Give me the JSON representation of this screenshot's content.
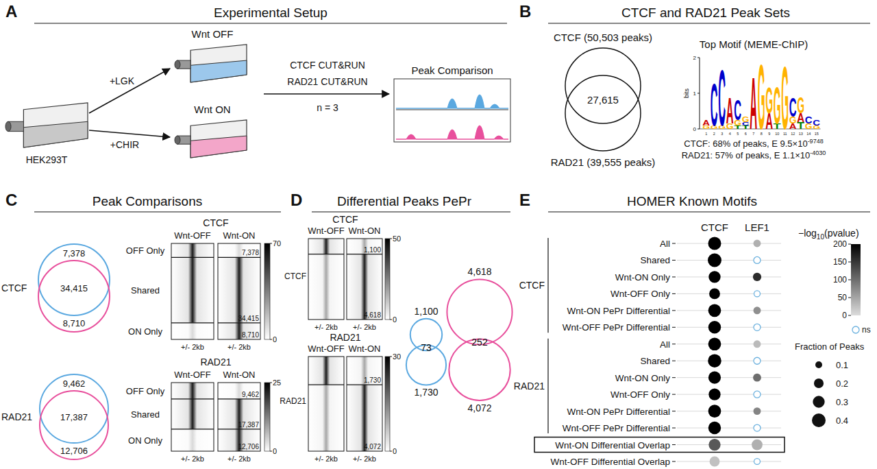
{
  "figure": {
    "A": {
      "letter": "A",
      "title": "Experimental Setup",
      "cell_line": "HEK293T",
      "treatments": [
        {
          "label": "+LGK",
          "condition": "Wnt OFF"
        },
        {
          "label": "+CHIR",
          "condition": "Wnt ON"
        }
      ],
      "assays": [
        "CTCF CUT&RUN",
        "RAD21 CUT&RUN"
      ],
      "replicates": "n = 3",
      "output": "Peak Comparison"
    },
    "B": {
      "letter": "B",
      "title": "CTCF and RAD21 Peak Sets",
      "venn": {
        "top": "CTCF (50,503 peaks)",
        "overlap": "27,615",
        "bottom": "RAD21 (39,555 peaks)"
      },
      "motif": {
        "title": "Top Motif (MEME-ChIP)",
        "y_label": "bits",
        "ylim": [
          0,
          2
        ],
        "yticks": [
          0,
          1,
          2
        ],
        "xticks": [
          1,
          2,
          3,
          4,
          5,
          6,
          7,
          8,
          9,
          10,
          11,
          12,
          13,
          14,
          15
        ],
        "positions": [
          [
            {
              "letter": "G",
              "height": 0.1
            },
            {
              "letter": "A",
              "height": 0.15
            }
          ],
          [
            {
              "letter": "G",
              "height": 0.1
            },
            {
              "letter": "C",
              "height": 1.2
            }
          ],
          [
            {
              "letter": "G",
              "height": 0.1
            },
            {
              "letter": "C",
              "height": 1.6
            }
          ],
          [
            {
              "letter": "G",
              "height": 0.15
            },
            {
              "letter": "A",
              "height": 0.75
            }
          ],
          [
            {
              "letter": "T",
              "height": 0.1
            },
            {
              "letter": "G",
              "height": 0.15
            },
            {
              "letter": "C",
              "height": 0.6
            }
          ],
          [
            {
              "letter": "T",
              "height": 0.1
            },
            {
              "letter": "C",
              "height": 0.1
            },
            {
              "letter": "G",
              "height": 0.15
            }
          ],
          [
            {
              "letter": "A",
              "height": 1.5
            }
          ],
          [
            {
              "letter": "G",
              "height": 1.85
            }
          ],
          [
            {
              "letter": "A",
              "height": 0.45
            },
            {
              "letter": "G",
              "height": 0.75
            }
          ],
          [
            {
              "letter": "T",
              "height": 0.15
            },
            {
              "letter": "G",
              "height": 1.05
            }
          ],
          [
            {
              "letter": "G",
              "height": 1.8
            }
          ],
          [
            {
              "letter": "A",
              "height": 0.15
            },
            {
              "letter": "G",
              "height": 0.2
            },
            {
              "letter": "C",
              "height": 0.55
            }
          ],
          [
            {
              "letter": "T",
              "height": 0.2
            },
            {
              "letter": "A",
              "height": 0.25
            },
            {
              "letter": "G",
              "height": 0.45
            }
          ],
          [
            {
              "letter": "G",
              "height": 0.15
            },
            {
              "letter": "C",
              "height": 0.2
            }
          ],
          [
            {
              "letter": "G",
              "height": 0.1
            },
            {
              "letter": "C",
              "height": 0.15
            }
          ]
        ],
        "stats": [
          {
            "text": "CTCF: 68% of peaks, E 9.5×10",
            "exponent": "-9748"
          },
          {
            "text": "RAD21: 57% of peaks, E 1.1×10",
            "exponent": "-4030"
          }
        ]
      }
    },
    "C": {
      "letter": "C",
      "title": "Peak Comparisons",
      "conditions": [
        "Wnt-OFF",
        "Wnt-ON"
      ],
      "row_labels": [
        "OFF Only",
        "Shared",
        "ON Only"
      ],
      "axis_label": "+/- 2kb",
      "sets": [
        {
          "name": "CTCF",
          "counts": [
            {
              "value": 7378,
              "label": "7,378"
            },
            {
              "value": 34415,
              "label": "34,415"
            },
            {
              "value": 8710,
              "label": "8,710"
            }
          ],
          "colorbar": {
            "lim": [
              0,
              70
            ],
            "ticks": [
              0,
              70
            ]
          }
        },
        {
          "name": "RAD21",
          "counts": [
            {
              "value": 9462,
              "label": "9,462"
            },
            {
              "value": 17387,
              "label": "17,387"
            },
            {
              "value": 12706,
              "label": "12,706"
            }
          ],
          "colorbar": {
            "lim": [
              0,
              25
            ],
            "ticks": [
              0,
              25
            ]
          }
        }
      ]
    },
    "D": {
      "letter": "D",
      "title": "Differential Peaks PePr",
      "conditions": [
        "Wnt-OFF",
        "Wnt-ON"
      ],
      "axis_label": "+/- 2kb",
      "sets": [
        {
          "name": "CTCF",
          "counts": [
            {
              "value": 1100,
              "label": "1,100"
            },
            {
              "value": 4618,
              "label": "4,618"
            }
          ],
          "colorbar": {
            "lim": [
              0,
              50
            ],
            "ticks": [
              0,
              50
            ]
          }
        },
        {
          "name": "RAD21",
          "counts": [
            {
              "value": 1730,
              "label": "1,730"
            },
            {
              "value": 4072,
              "label": "4,072"
            }
          ],
          "colorbar": {
            "lim": [
              0,
              30
            ],
            "ticks": [
              0,
              30
            ]
          }
        }
      ],
      "venns": [
        {
          "top": {
            "value": 1100,
            "label": "1,100"
          },
          "overlap": {
            "value": 73,
            "label": "73"
          },
          "bottom": {
            "value": 1730,
            "label": "1,730"
          },
          "color": "#5aa8e0"
        },
        {
          "top": {
            "value": 4618,
            "label": "4,618"
          },
          "overlap": {
            "value": 252,
            "label": "252"
          },
          "bottom": {
            "value": 4072,
            "label": "4,072"
          },
          "color": "#e84f9c"
        }
      ]
    },
    "E": {
      "letter": "E"
    }
  },
  "chart_data": {
    "type": "dot",
    "title": "HOMER Known Motifs",
    "categories": [
      "All",
      "Shared",
      "Wnt-ON Only",
      "Wnt-OFF Only",
      "Wnt-ON PePr Differential",
      "Wnt-OFF PePr Differential",
      "All",
      "Shared",
      "Wnt-ON Only",
      "Wnt-OFF Only",
      "Wnt-ON PePr Differential",
      "Wnt-OFF PePr Differential",
      "Wnt-ON Differential Overlap",
      "Wnt-OFF Differential Overlap"
    ],
    "groups": [
      {
        "label": "CTCF",
        "count": 6
      },
      {
        "label": "RAD21",
        "count": 6
      }
    ],
    "highlight": "Wnt-ON Differential Overlap",
    "series": [
      {
        "name": "CTCF",
        "values": [
          0.36,
          0.4,
          0.3,
          0.25,
          0.35,
          0.34,
          0.35,
          0.38,
          0.33,
          0.3,
          0.35,
          0.34,
          0.3,
          0.22
        ],
        "pvalues": [
          200,
          200,
          200,
          200,
          200,
          200,
          200,
          200,
          200,
          200,
          200,
          200,
          120,
          25
        ]
      },
      {
        "name": "LEF1",
        "values": [
          0.12,
          0.1,
          0.15,
          0.08,
          0.12,
          0.1,
          0.12,
          0.1,
          0.14,
          0.1,
          0.12,
          0.1,
          0.25,
          0.08
        ],
        "pvalues": [
          40,
          null,
          160,
          null,
          70,
          null,
          30,
          null,
          100,
          null,
          80,
          null,
          40,
          null
        ]
      }
    ],
    "color_scale": {
      "title": "−log",
      "title_sub": "10",
      "title_end": "(pvalue)",
      "lim": [
        0,
        200
      ],
      "ticks": [
        0,
        50,
        100,
        150,
        200
      ],
      "ns_label": "ns"
    },
    "size_legend": {
      "title": "Fraction of Peaks",
      "values": [
        0.1,
        0.2,
        0.3,
        0.4
      ]
    }
  }
}
